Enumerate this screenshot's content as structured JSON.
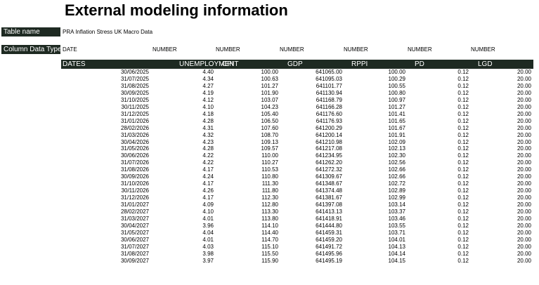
{
  "title": "External modeling information",
  "table_name": {
    "label": "Table name",
    "value": "PRA Inflation Stress UK Macro Data"
  },
  "column_data_type": {
    "label": "Column Data Type",
    "values": [
      "DATE",
      "NUMBER",
      "NUMBER",
      "NUMBER",
      "NUMBER",
      "NUMBER",
      "NUMBER"
    ]
  },
  "table": {
    "headers": [
      "DATES",
      "UNEMPLOYMENT",
      "CPI",
      "GDP",
      "RPPI",
      "PD",
      "LGD"
    ],
    "rows": [
      [
        "30/06/2025",
        "4.40",
        "100.00",
        "641065.00",
        "100.00",
        "0.12",
        "20.00"
      ],
      [
        "31/07/2025",
        "4.34",
        "100.63",
        "641095.03",
        "100.29",
        "0.12",
        "20.00"
      ],
      [
        "31/08/2025",
        "4.27",
        "101.27",
        "641101.77",
        "100.55",
        "0.12",
        "20.00"
      ],
      [
        "30/09/2025",
        "4.19",
        "101.90",
        "641130.94",
        "100.80",
        "0.12",
        "20.00"
      ],
      [
        "31/10/2025",
        "4.12",
        "103.07",
        "641168.79",
        "100.97",
        "0.12",
        "20.00"
      ],
      [
        "30/11/2025",
        "4.10",
        "104.23",
        "641166.28",
        "101.27",
        "0.12",
        "20.00"
      ],
      [
        "31/12/2025",
        "4.18",
        "105.40",
        "641176.60",
        "101.41",
        "0.12",
        "20.00"
      ],
      [
        "31/01/2026",
        "4.28",
        "106.50",
        "641176.93",
        "101.65",
        "0.12",
        "20.00"
      ],
      [
        "28/02/2026",
        "4.31",
        "107.60",
        "641200.29",
        "101.67",
        "0.12",
        "20.00"
      ],
      [
        "31/03/2026",
        "4.32",
        "108.70",
        "641200.14",
        "101.91",
        "0.12",
        "20.00"
      ],
      [
        "30/04/2026",
        "4.23",
        "109.13",
        "641210.98",
        "102.09",
        "0.12",
        "20.00"
      ],
      [
        "31/05/2026",
        "4.28",
        "109.57",
        "641217.08",
        "102.13",
        "0.12",
        "20.00"
      ],
      [
        "30/06/2026",
        "4.22",
        "110.00",
        "641234.95",
        "102.30",
        "0.12",
        "20.00"
      ],
      [
        "31/07/2026",
        "4.22",
        "110.27",
        "641262.20",
        "102.56",
        "0.12",
        "20.00"
      ],
      [
        "31/08/2026",
        "4.17",
        "110.53",
        "641272.32",
        "102.66",
        "0.12",
        "20.00"
      ],
      [
        "30/09/2026",
        "4.24",
        "110.80",
        "641309.67",
        "102.66",
        "0.12",
        "20.00"
      ],
      [
        "31/10/2026",
        "4.17",
        "111.30",
        "641348.67",
        "102.72",
        "0.12",
        "20.00"
      ],
      [
        "30/11/2026",
        "4.26",
        "111.80",
        "641374.48",
        "102.89",
        "0.12",
        "20.00"
      ],
      [
        "31/12/2026",
        "4.17",
        "112.30",
        "641381.67",
        "102.99",
        "0.12",
        "20.00"
      ],
      [
        "31/01/2027",
        "4.09",
        "112.80",
        "641397.08",
        "103.14",
        "0.12",
        "20.00"
      ],
      [
        "28/02/2027",
        "4.10",
        "113.30",
        "641413.13",
        "103.37",
        "0.12",
        "20.00"
      ],
      [
        "31/03/2027",
        "4.01",
        "113.80",
        "641418.91",
        "103.46",
        "0.12",
        "20.00"
      ],
      [
        "30/04/2027",
        "3.96",
        "114.10",
        "641444.80",
        "103.55",
        "0.12",
        "20.00"
      ],
      [
        "31/05/2027",
        "4.04",
        "114.40",
        "641459.31",
        "103.71",
        "0.12",
        "20.00"
      ],
      [
        "30/06/2027",
        "4.01",
        "114.70",
        "641459.20",
        "104.01",
        "0.12",
        "20.00"
      ],
      [
        "31/07/2027",
        "4.03",
        "115.10",
        "641491.72",
        "104.13",
        "0.12",
        "20.00"
      ],
      [
        "31/08/2027",
        "3.98",
        "115.50",
        "641495.96",
        "104.14",
        "0.12",
        "20.00"
      ],
      [
        "30/09/2027",
        "3.97",
        "115.90",
        "641495.19",
        "104.15",
        "0.12",
        "20.00"
      ]
    ]
  }
}
